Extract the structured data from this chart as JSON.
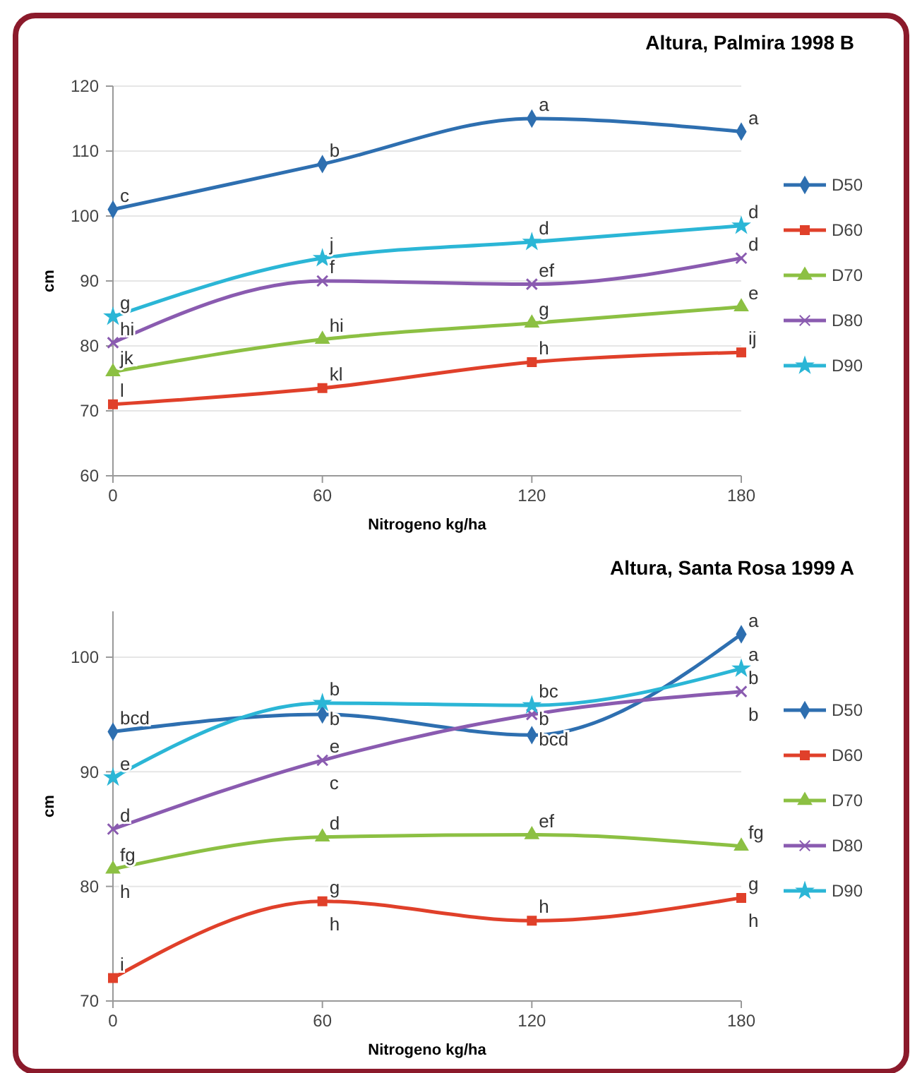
{
  "chart_data": [
    {
      "type": "line",
      "title": "Altura, Palmira 1998 B",
      "xlabel": "Nitrogeno kg/ha",
      "ylabel": "cm",
      "x": [
        0,
        60,
        120,
        180
      ],
      "xlim": [
        0,
        180
      ],
      "xticks": [
        0,
        60,
        120,
        180
      ],
      "ylim": [
        60,
        120
      ],
      "yticks": [
        60,
        70,
        80,
        90,
        100,
        110,
        120
      ],
      "grid": "y",
      "legend": "right",
      "series": [
        {
          "name": "D50",
          "color": "#2e6fb0",
          "marker": "diamond",
          "values": [
            101,
            108,
            115,
            113
          ]
        },
        {
          "name": "D60",
          "color": "#e0402a",
          "marker": "square",
          "values": [
            71,
            73.5,
            77.5,
            79
          ]
        },
        {
          "name": "D70",
          "color": "#8cc043",
          "marker": "triangle",
          "values": [
            76,
            81,
            83.5,
            86
          ]
        },
        {
          "name": "D80",
          "color": "#8a5bb0",
          "marker": "cross",
          "values": [
            80.5,
            90,
            89.5,
            93.5
          ]
        },
        {
          "name": "D90",
          "color": "#2bb6d6",
          "marker": "star",
          "values": [
            84.5,
            93.5,
            96,
            98.5
          ]
        }
      ],
      "annotations": [
        {
          "text": "c",
          "x": 0,
          "y": 101
        },
        {
          "text": "b",
          "x": 60,
          "y": 108
        },
        {
          "text": "a",
          "x": 120,
          "y": 115
        },
        {
          "text": "a",
          "x": 180,
          "y": 113
        },
        {
          "text": "g",
          "x": 0,
          "y": 84.5
        },
        {
          "text": "j",
          "x": 60,
          "y": 93.5
        },
        {
          "text": "d",
          "x": 120,
          "y": 96
        },
        {
          "text": "d",
          "x": 180,
          "y": 98.5
        },
        {
          "text": "hi",
          "x": 0,
          "y": 80.5
        },
        {
          "text": "f",
          "x": 60,
          "y": 90
        },
        {
          "text": "ef",
          "x": 120,
          "y": 89.5
        },
        {
          "text": "d",
          "x": 180,
          "y": 93.5
        },
        {
          "text": "jk",
          "x": 0,
          "y": 76
        },
        {
          "text": "hi",
          "x": 60,
          "y": 81
        },
        {
          "text": "g",
          "x": 120,
          "y": 83.5
        },
        {
          "text": "e",
          "x": 180,
          "y": 86
        },
        {
          "text": "l",
          "x": 0,
          "y": 71
        },
        {
          "text": "kl",
          "x": 60,
          "y": 73.5
        },
        {
          "text": "h",
          "x": 120,
          "y": 77.5
        },
        {
          "text": "ij",
          "x": 180,
          "y": 79
        }
      ]
    },
    {
      "type": "line",
      "title": "Altura, Santa Rosa 1999 A",
      "xlabel": "Nitrogeno kg/ha",
      "ylabel": "cm",
      "x": [
        0,
        60,
        120,
        180
      ],
      "xlim": [
        0,
        180
      ],
      "xticks": [
        0,
        60,
        120,
        180
      ],
      "ylim": [
        70,
        104
      ],
      "yticks": [
        70,
        80,
        90,
        100
      ],
      "grid": "y",
      "legend": "right",
      "series": [
        {
          "name": "D50",
          "color": "#2e6fb0",
          "marker": "diamond",
          "values": [
            93.5,
            95,
            93.2,
            102
          ]
        },
        {
          "name": "D60",
          "color": "#e0402a",
          "marker": "square",
          "values": [
            72,
            78.7,
            77,
            79
          ]
        },
        {
          "name": "D70",
          "color": "#8cc043",
          "marker": "triangle",
          "values": [
            81.5,
            84.3,
            84.5,
            83.5
          ]
        },
        {
          "name": "D80",
          "color": "#8a5bb0",
          "marker": "cross",
          "values": [
            85,
            91,
            95,
            97
          ]
        },
        {
          "name": "D90",
          "color": "#2bb6d6",
          "marker": "star",
          "values": [
            89.5,
            96,
            95.8,
            99
          ]
        }
      ],
      "annotations": [
        {
          "text": "bcd",
          "x": 0,
          "y": 93.5
        },
        {
          "text": "e",
          "x": 0,
          "y": 89.5
        },
        {
          "text": "d",
          "x": 0,
          "y": 85
        },
        {
          "text": "fg",
          "x": 0,
          "y": 81.5
        },
        {
          "text": "h",
          "x": 0,
          "y": 81.5
        },
        {
          "text": "i",
          "x": 0,
          "y": 72
        },
        {
          "text": "b",
          "x": 60,
          "y": 96
        },
        {
          "text": "b",
          "x": 60,
          "y": 95
        },
        {
          "text": "e",
          "x": 60,
          "y": 91
        },
        {
          "text": "c",
          "x": 60,
          "y": 91
        },
        {
          "text": "d",
          "x": 60,
          "y": 84.3
        },
        {
          "text": "g",
          "x": 60,
          "y": 78.7
        },
        {
          "text": "h",
          "x": 60,
          "y": 78.7
        },
        {
          "text": "bc",
          "x": 120,
          "y": 95.8
        },
        {
          "text": "b",
          "x": 120,
          "y": 95
        },
        {
          "text": "bcd",
          "x": 120,
          "y": 93.2
        },
        {
          "text": "ef",
          "x": 120,
          "y": 84.5
        },
        {
          "text": "h",
          "x": 120,
          "y": 77
        },
        {
          "text": "a",
          "x": 180,
          "y": 102
        },
        {
          "text": "a",
          "x": 180,
          "y": 99
        },
        {
          "text": "b",
          "x": 180,
          "y": 97
        },
        {
          "text": "b",
          "x": 180,
          "y": 97
        },
        {
          "text": "fg",
          "x": 180,
          "y": 83.5
        },
        {
          "text": "g",
          "x": 180,
          "y": 79
        },
        {
          "text": "h",
          "x": 180,
          "y": 79
        }
      ]
    }
  ]
}
